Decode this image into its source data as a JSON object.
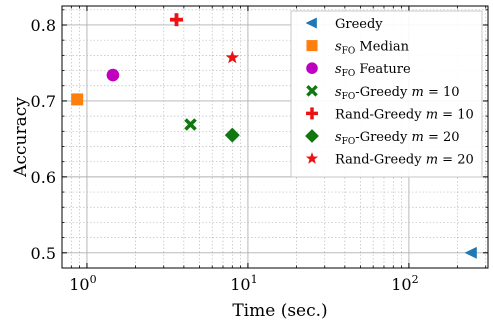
{
  "chart_data": {
    "type": "scatter",
    "title": "",
    "xlabel": "Time (sec.)",
    "ylabel": "Accuracy",
    "xscale": "log",
    "xlim": [
      0.7,
      310
    ],
    "ylim": [
      0.48,
      0.825
    ],
    "x_ticks": [
      1,
      10,
      100
    ],
    "x_tick_labels": [
      {
        "base": "10",
        "exp": "0"
      },
      {
        "base": "10",
        "exp": "1"
      },
      {
        "base": "10",
        "exp": "2"
      }
    ],
    "y_ticks": [
      0.5,
      0.6,
      0.7,
      0.8
    ],
    "y_tick_labels": [
      "0.5",
      "0.6",
      "0.7",
      "0.8"
    ],
    "grid": true,
    "legend_position": "top-right",
    "series": [
      {
        "name": "Greedy",
        "legend": {
          "pre": "Greedy",
          "sub": "",
          "post": "",
          "m": ""
        },
        "marker": "triangle-left",
        "color": "#1f77b4",
        "points": [
          {
            "x": 245,
            "y": 0.5
          }
        ]
      },
      {
        "name": "sFO Median",
        "legend": {
          "pre": "s",
          "sub": "FO",
          "post": " Median",
          "m": ""
        },
        "marker": "square",
        "color": "#ff7f0e",
        "points": [
          {
            "x": 0.87,
            "y": 0.702
          }
        ]
      },
      {
        "name": "sFO Feature",
        "legend": {
          "pre": "s",
          "sub": "FO",
          "post": " Feature",
          "m": ""
        },
        "marker": "circle",
        "color": "#bf00bf",
        "points": [
          {
            "x": 1.45,
            "y": 0.734
          }
        ]
      },
      {
        "name": "sFO-Greedy m = 10",
        "legend": {
          "pre": "s",
          "sub": "FO",
          "post": "-Greedy ",
          "m": "10"
        },
        "marker": "x",
        "color": "#117711",
        "points": [
          {
            "x": 4.4,
            "y": 0.669
          }
        ]
      },
      {
        "name": "Rand-Greedy m = 10",
        "legend": {
          "pre": "Rand-Greedy ",
          "sub": "",
          "post": "",
          "m": "10"
        },
        "marker": "plus",
        "color": "#ee1111",
        "points": [
          {
            "x": 3.6,
            "y": 0.807
          }
        ]
      },
      {
        "name": "sFO-Greedy m = 20",
        "legend": {
          "pre": "s",
          "sub": "FO",
          "post": "-Greedy ",
          "m": "20"
        },
        "marker": "diamond",
        "color": "#117711",
        "points": [
          {
            "x": 8.0,
            "y": 0.655
          }
        ]
      },
      {
        "name": "Rand-Greedy m = 20",
        "legend": {
          "pre": "Rand-Greedy ",
          "sub": "",
          "post": "",
          "m": "20"
        },
        "marker": "star",
        "color": "#ee1111",
        "points": [
          {
            "x": 8.0,
            "y": 0.757
          }
        ]
      }
    ]
  }
}
